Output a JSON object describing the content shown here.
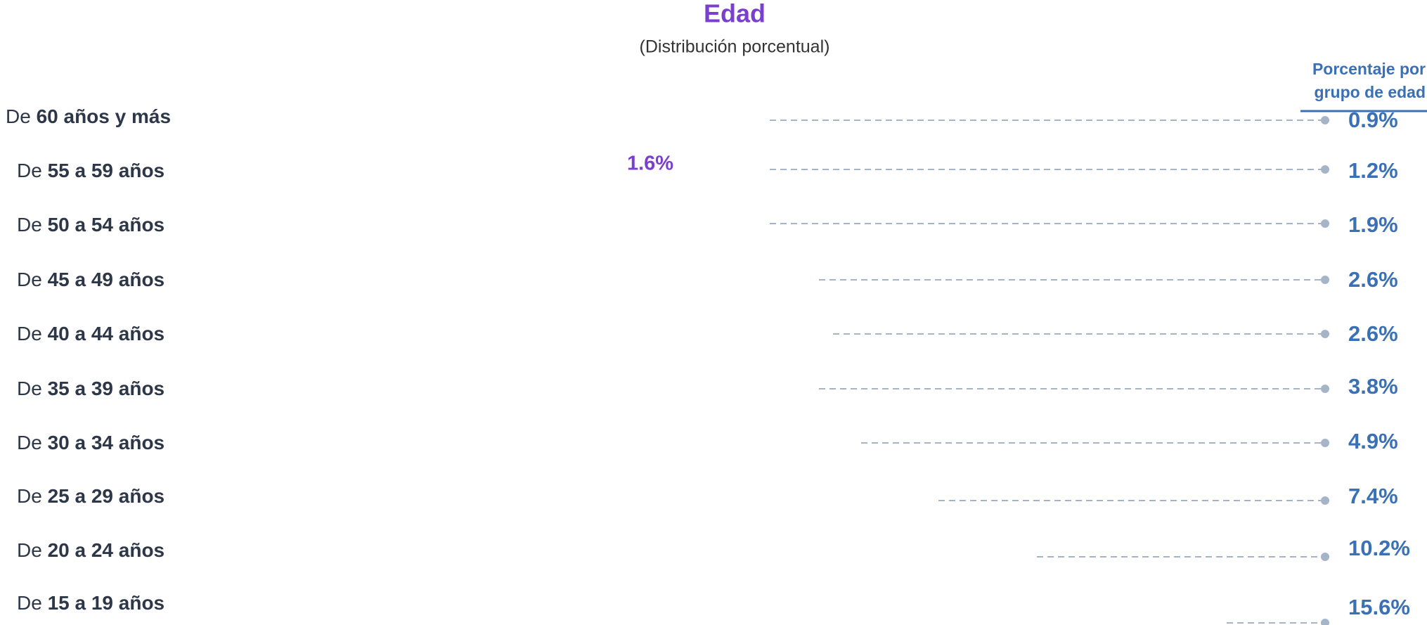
{
  "chart_data": {
    "type": "dot-list",
    "title": "Edad",
    "subtitle": "(Distribución porcentual)",
    "value_header": "Porcentaje por grupo de edad",
    "annotation": "1.6%",
    "categories": [
      "De 60 años y más",
      "De 55 a 59 años",
      "De 50 a 54 años",
      "De 45 a 49 años",
      "De 40 a 44 años",
      "De 35 a 39 años",
      "De 30 a 34 años",
      "De 25 a 29 años",
      "De 20 a 24 años",
      "De 15 a 19 años"
    ],
    "values": [
      0.9,
      1.2,
      1.9,
      2.6,
      2.6,
      3.8,
      4.9,
      7.4,
      10.2,
      15.6
    ],
    "value_labels": [
      "0.9%",
      "1.2%",
      "1.9%",
      "2.6%",
      "2.6%",
      "3.8%",
      "4.9%",
      "7.4%",
      "10.2%",
      "15.6%"
    ],
    "color": "#3a70b5",
    "title_color": "#7b3fd0"
  }
}
